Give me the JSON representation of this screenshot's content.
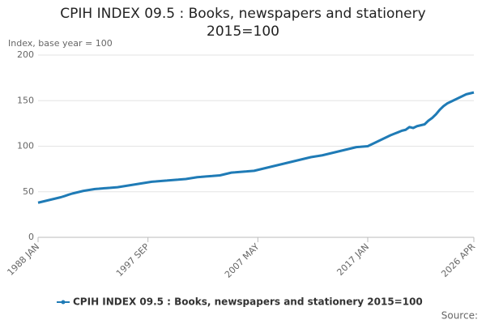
{
  "chart_data": {
    "type": "line",
    "title": "CPIH INDEX 09.5 : Books, newspapers and stationery 2015=100",
    "y_axis_label": "Index, base year = 100",
    "source": "Source:",
    "categories": [
      "1988 JAN",
      null,
      null,
      null,
      null,
      null,
      null,
      null,
      null,
      null,
      null,
      null,
      null,
      null,
      null,
      null,
      null,
      null,
      null,
      null,
      null,
      null,
      null,
      null,
      null,
      null,
      null,
      null,
      null,
      "1997 SEP",
      null,
      null,
      null,
      null,
      null,
      null,
      null,
      null,
      null,
      null,
      null,
      null,
      null,
      null,
      null,
      null,
      null,
      null,
      null,
      null,
      null,
      null,
      null,
      null,
      null,
      null,
      null,
      null,
      "2007 MAY",
      null,
      null,
      null,
      null,
      null,
      null,
      null,
      null,
      null,
      null,
      null,
      null,
      null,
      null,
      null,
      null,
      null,
      null,
      null,
      null,
      null,
      null,
      null,
      null,
      null,
      null,
      null,
      null,
      "2017 JAN",
      null,
      null,
      null,
      null,
      null,
      null,
      null,
      null,
      null,
      null,
      null,
      null,
      null,
      null,
      null,
      null,
      null,
      null,
      null,
      null,
      null,
      null,
      null,
      null,
      null,
      null,
      null,
      "2026 APR"
    ],
    "series": [
      {
        "name": "CPIH INDEX 09.5 : Books, newspapers and stationery 2015=100",
        "color": "#1f7bb6",
        "values": [
          38,
          39,
          40,
          41,
          42,
          43,
          44,
          45.3,
          46.7,
          48,
          49,
          50,
          51,
          51.7,
          52.3,
          53,
          53.3,
          53.7,
          54,
          54.3,
          54.7,
          55,
          55.7,
          56.3,
          57,
          57.7,
          58.3,
          59,
          59.7,
          60.3,
          61,
          61.3,
          61.7,
          62,
          62.3,
          62.7,
          63,
          63.3,
          63.7,
          64,
          64.7,
          65.3,
          66,
          66.3,
          66.7,
          67,
          67.3,
          67.7,
          68,
          69,
          70,
          71,
          71.3,
          71.7,
          72,
          72.3,
          72.7,
          73,
          74,
          75,
          76,
          77,
          78,
          79,
          80,
          81,
          82,
          83,
          84,
          85,
          86,
          87,
          88,
          88.7,
          89.3,
          90,
          91,
          92,
          93,
          94,
          95,
          96,
          97,
          98,
          99,
          99.3,
          99.7,
          100,
          102,
          104,
          106,
          108,
          110,
          112,
          113.7,
          115.3,
          117,
          118,
          121,
          120,
          122,
          123,
          124,
          128,
          131,
          135,
          140,
          144,
          147,
          149,
          151,
          153,
          155,
          157,
          158,
          159
        ]
      }
    ],
    "ylim": [
      0,
      200
    ],
    "yticks": [
      0,
      50,
      100,
      150,
      200
    ],
    "grid": true,
    "legend": "bottom"
  }
}
